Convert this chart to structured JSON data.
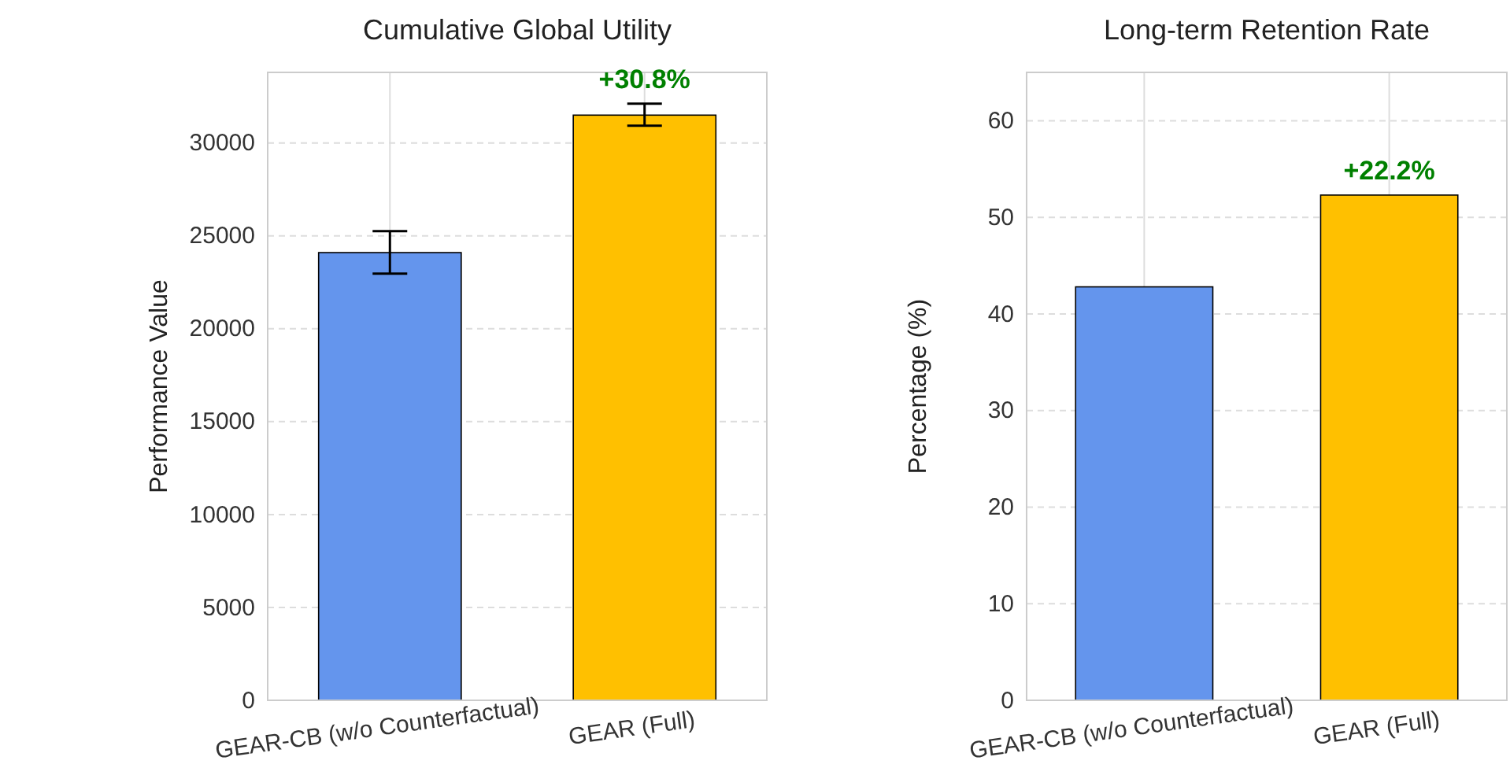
{
  "chart_data": [
    {
      "type": "bar",
      "title": "Cumulative Global Utility",
      "ylabel": "Performance Value",
      "categories": [
        "GEAR-CB (w/o Counterfactual)",
        "GEAR (Full)"
      ],
      "values": [
        24100,
        31500
      ],
      "colors": [
        "#6495ed",
        "#ffc000"
      ],
      "errors": [
        [
          22970,
          25250
        ],
        [
          30930,
          32120
        ]
      ],
      "ylim": [
        0,
        33800
      ],
      "yticks": [
        0,
        5000,
        10000,
        15000,
        20000,
        25000,
        30000
      ],
      "grid": "y",
      "ref_lines": [
        {
          "axis": "x",
          "value": "GEAR-CB (w/o Counterfactual)",
          "color": "#dddddd"
        },
        {
          "axis": "x",
          "value": "GEAR (Full)",
          "color": "#dddddd"
        }
      ],
      "annotations": [
        "+30.8%"
      ]
    },
    {
      "type": "bar",
      "title": "Long-term Retention Rate",
      "ylabel": "Percentage (%)",
      "categories": [
        "GEAR-CB (w/o Counterfactual)",
        "GEAR (Full)"
      ],
      "values": [
        42.8,
        52.3
      ],
      "colors": [
        "#6495ed",
        "#ffc000"
      ],
      "ylim": [
        0,
        65
      ],
      "yticks": [
        0,
        10,
        20,
        30,
        40,
        50,
        60
      ],
      "grid": "y",
      "ref_lines": [
        {
          "axis": "x",
          "value": "GEAR-CB (w/o Counterfactual)",
          "color": "#dddddd"
        },
        {
          "axis": "x",
          "value": "GEAR (Full)",
          "color": "#dddddd"
        }
      ],
      "annotations": [
        "+22.2%"
      ]
    }
  ]
}
